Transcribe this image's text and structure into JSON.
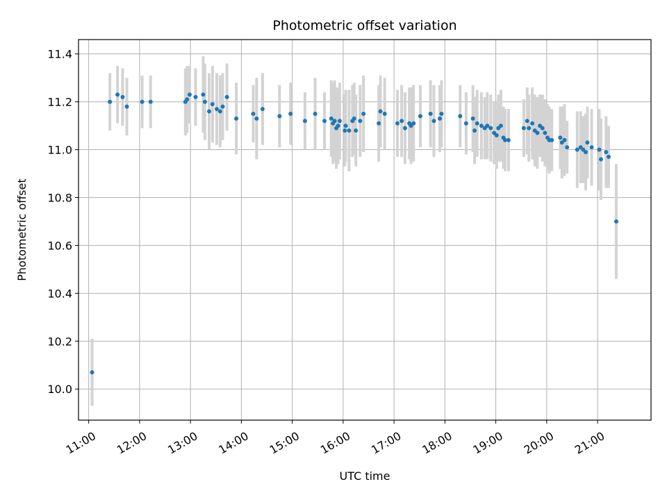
{
  "chart_data": {
    "type": "scatter",
    "title": "Photometric offset variation",
    "xlabel": "UTC time",
    "ylabel": "Photometric offset",
    "xlim": [
      "10:48",
      "22:03"
    ],
    "ylim": [
      9.87,
      11.46
    ],
    "grid": true,
    "legend": "none",
    "x_ticks": [
      "11:00",
      "12:00",
      "13:00",
      "14:00",
      "15:00",
      "16:00",
      "17:00",
      "18:00",
      "19:00",
      "20:00",
      "21:00"
    ],
    "y_ticks": [
      "10.0",
      "10.2",
      "10.4",
      "10.6",
      "10.8",
      "11.0",
      "11.2",
      "11.4"
    ],
    "colors": {
      "point": "#1f77b4",
      "errorbar": "#d3d3d3",
      "grid": "#b0b0b0"
    },
    "series": [
      {
        "x": [
          "11:04",
          "11:25",
          "11:34",
          "11:40",
          "11:45",
          "12:03",
          "12:13",
          "12:54",
          "12:56",
          "12:59",
          "13:06",
          "13:15",
          "13:17",
          "13:22",
          "13:26",
          "13:31",
          "13:35",
          "13:38",
          "13:43",
          "13:54",
          "14:14",
          "14:18",
          "14:25",
          "14:45",
          "14:58",
          "15:15",
          "15:27",
          "15:38",
          "15:46",
          "15:48",
          "15:50",
          "15:52",
          "15:54",
          "15:56",
          "16:02",
          "16:03",
          "16:07",
          "16:11",
          "16:13",
          "16:15",
          "16:20",
          "16:24",
          "16:42",
          "16:44",
          "16:49",
          "17:04",
          "17:09",
          "17:13",
          "17:18",
          "17:20",
          "17:23",
          "17:31",
          "17:43",
          "17:47",
          "17:54",
          "17:56",
          "18:18",
          "18:25",
          "18:33",
          "18:35",
          "18:38",
          "18:43",
          "18:47",
          "18:50",
          "18:54",
          "18:58",
          "19:01",
          "19:03",
          "19:06",
          "19:09",
          "19:11",
          "19:15",
          "19:33",
          "19:37",
          "19:39",
          "19:43",
          "19:46",
          "19:49",
          "19:52",
          "19:55",
          "19:58",
          "20:01",
          "20:03",
          "20:06",
          "20:16",
          "20:18",
          "20:21",
          "20:24",
          "20:36",
          "20:40",
          "20:43",
          "20:46",
          "20:48",
          "20:53",
          "21:02",
          "21:04",
          "21:10",
          "21:13",
          "21:22"
        ],
        "y": [
          10.07,
          11.2,
          11.23,
          11.22,
          11.18,
          11.2,
          11.2,
          11.2,
          11.21,
          11.23,
          11.22,
          11.23,
          11.2,
          11.16,
          11.19,
          11.17,
          11.16,
          11.18,
          11.22,
          11.13,
          11.15,
          11.13,
          11.17,
          11.14,
          11.15,
          11.12,
          11.15,
          11.12,
          11.13,
          11.11,
          11.12,
          11.09,
          11.1,
          11.12,
          11.08,
          11.1,
          11.08,
          11.12,
          11.13,
          11.08,
          11.12,
          11.15,
          11.11,
          11.16,
          11.15,
          11.11,
          11.12,
          11.09,
          11.11,
          11.1,
          11.11,
          11.14,
          11.15,
          11.12,
          11.13,
          11.15,
          11.14,
          11.11,
          11.13,
          11.08,
          11.11,
          11.1,
          11.09,
          11.1,
          11.09,
          11.07,
          11.06,
          11.09,
          11.1,
          11.05,
          11.04,
          11.04,
          11.09,
          11.12,
          11.09,
          11.11,
          11.08,
          11.07,
          11.1,
          11.09,
          11.07,
          11.05,
          11.04,
          11.04,
          11.05,
          11.03,
          11.04,
          11.01,
          11.0,
          11.01,
          11.0,
          10.99,
          11.03,
          11.01,
          11.0,
          10.96,
          10.99,
          10.97,
          10.7
        ],
        "yerr": [
          0.14,
          0.12,
          0.12,
          0.12,
          0.12,
          0.11,
          0.11,
          0.14,
          0.14,
          0.12,
          0.12,
          0.16,
          0.16,
          0.16,
          0.16,
          0.15,
          0.15,
          0.14,
          0.14,
          0.15,
          0.12,
          0.17,
          0.15,
          0.13,
          0.13,
          0.12,
          0.15,
          0.12,
          0.16,
          0.17,
          0.17,
          0.17,
          0.16,
          0.16,
          0.15,
          0.15,
          0.17,
          0.15,
          0.15,
          0.15,
          0.15,
          0.16,
          0.16,
          0.15,
          0.15,
          0.14,
          0.15,
          0.15,
          0.15,
          0.16,
          0.16,
          0.13,
          0.14,
          0.15,
          0.14,
          0.14,
          0.13,
          0.13,
          0.14,
          0.14,
          0.14,
          0.14,
          0.13,
          0.14,
          0.14,
          0.13,
          0.14,
          0.14,
          0.15,
          0.13,
          0.13,
          0.13,
          0.12,
          0.14,
          0.14,
          0.15,
          0.15,
          0.15,
          0.13,
          0.14,
          0.14,
          0.14,
          0.14,
          0.13,
          0.13,
          0.15,
          0.15,
          0.11,
          0.16,
          0.15,
          0.14,
          0.16,
          0.15,
          0.16,
          0.17,
          0.17,
          0.15,
          0.13,
          0.24
        ]
      }
    ]
  }
}
